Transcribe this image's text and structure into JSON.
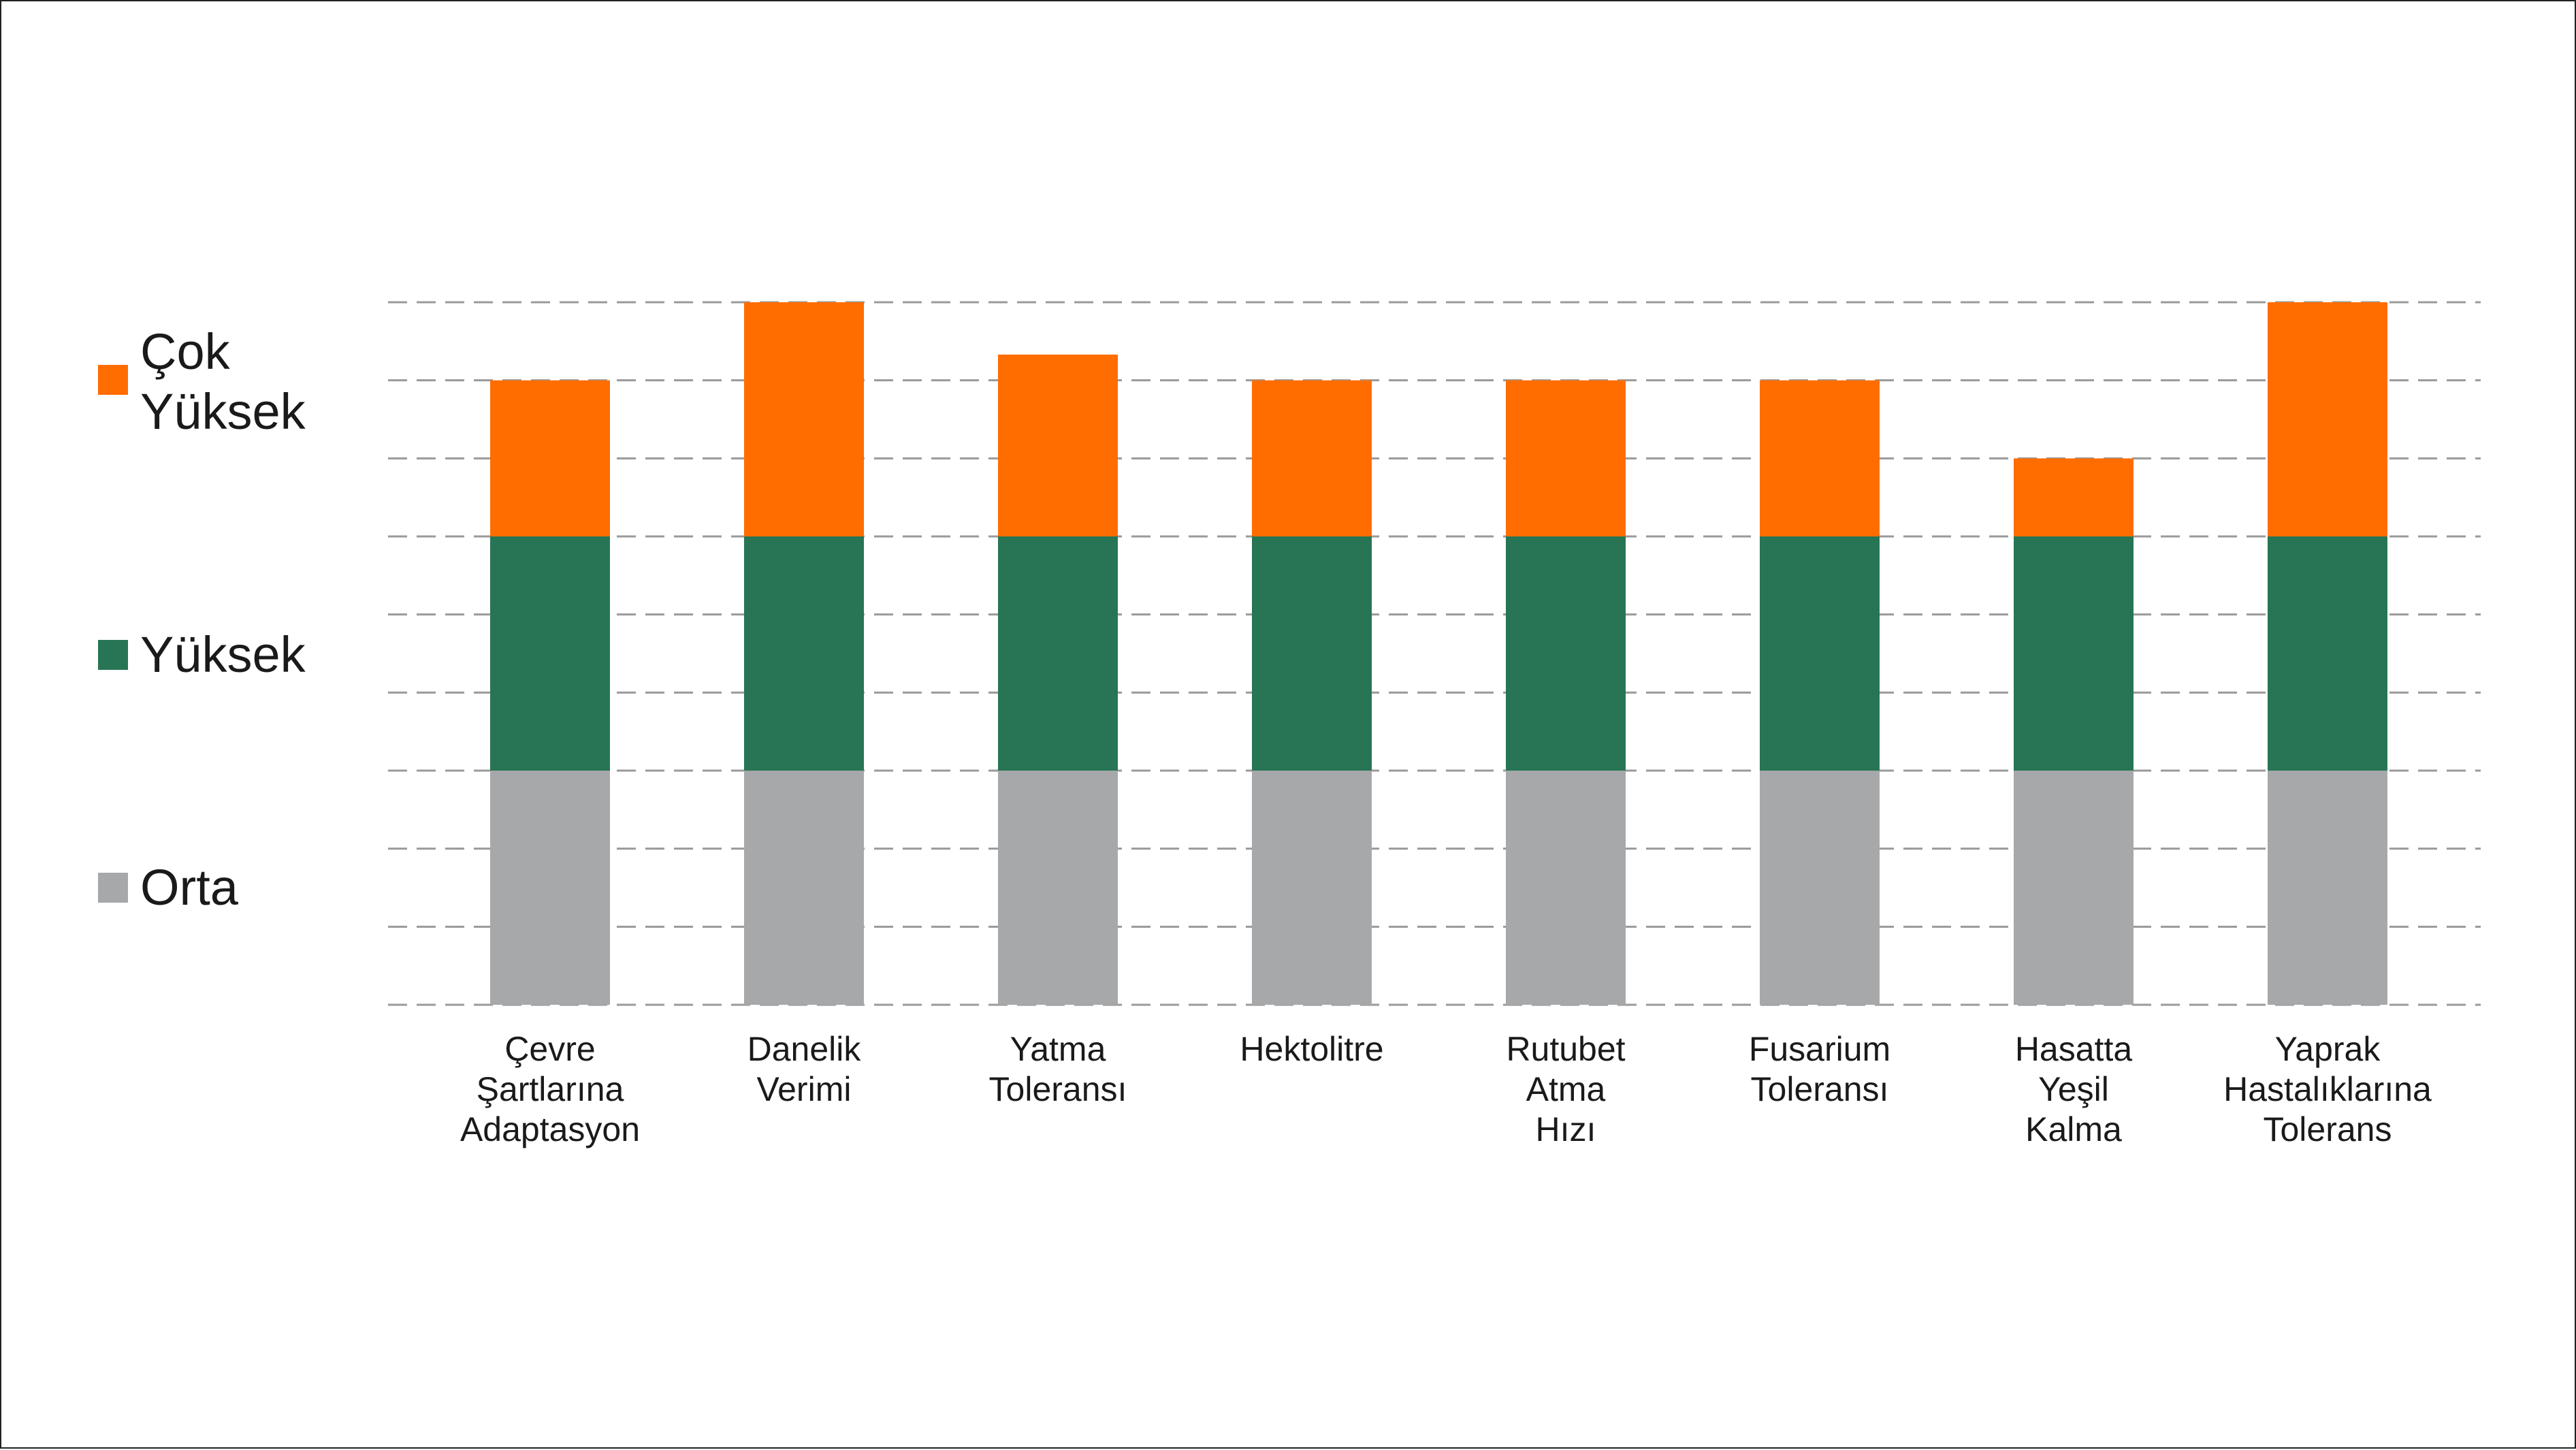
{
  "chart_data": {
    "type": "bar",
    "stacked": true,
    "categories": [
      "Çevre Şartlarına Adaptasyon",
      "Danelik Verimi",
      "Yatma Toleransı",
      "Hektolitre",
      "Rutubet Atma Hızı",
      "Fusarium Toleransı",
      "Hasatta Yeşil Kalma",
      "Yaprak Hastalıklarına Tolerans"
    ],
    "category_lines": [
      [
        "Çevre",
        "Şartlarına",
        "Adaptasyon"
      ],
      [
        "Danelik",
        "Verimi"
      ],
      [
        "Yatma",
        "Toleransı"
      ],
      [
        "Hektolitre"
      ],
      [
        "Rutubet",
        "Atma",
        "Hızı"
      ],
      [
        "Fusarium",
        "Toleransı"
      ],
      [
        "Hasatta",
        "Yeşil",
        "Kalma"
      ],
      [
        "Yaprak",
        "Hastalıklarına",
        "Tolerans"
      ]
    ],
    "series": [
      {
        "name": "Orta",
        "color": "#a7a8aa",
        "values": [
          3,
          3,
          3,
          3,
          3,
          3,
          3,
          3
        ]
      },
      {
        "name": "Yüksek",
        "color": "#277554",
        "values": [
          3,
          3,
          3,
          3,
          3,
          3,
          3,
          3
        ]
      },
      {
        "name": "Çok Yüksek",
        "color": "#ff6d00",
        "values": [
          2,
          3,
          2.33,
          2,
          2,
          2,
          1,
          3
        ]
      }
    ],
    "legend": {
      "placement": "left",
      "entries": [
        {
          "lines": [
            "Çok",
            "Yüksek"
          ],
          "color": "#ff6d00"
        },
        {
          "lines": [
            "Yüksek"
          ],
          "color": "#277554"
        },
        {
          "lines": [
            "Orta"
          ],
          "color": "#a7a8aa"
        }
      ]
    },
    "ylim": [
      0,
      9
    ],
    "grid": true,
    "grid_style": "dashed",
    "title": "",
    "xlabel": "",
    "ylabel": ""
  }
}
